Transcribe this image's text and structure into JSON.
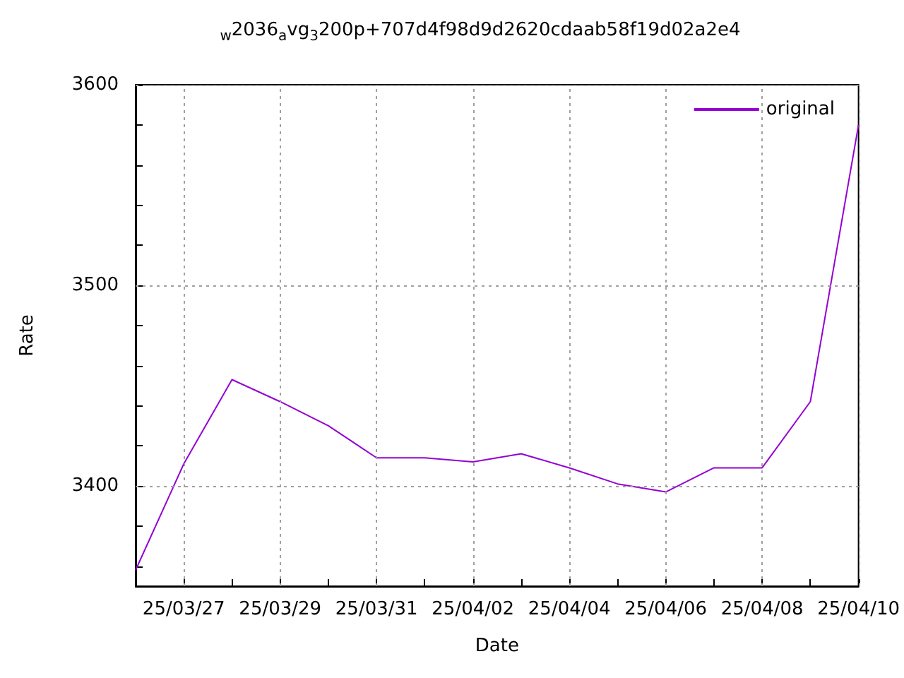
{
  "chart_data": {
    "type": "line",
    "title": "$_{w}$2036$_{a}$vg$_{3}$200p+707d4f98d9d2620cdaab58f19d02a2e4",
    "xlabel": "Date",
    "ylabel": "Rate",
    "x": [
      "--03-26",
      "--03-27",
      "--03-28",
      "--03-29",
      "--03-30",
      "--03-31",
      "--04-01",
      "--04-02",
      "--04-03",
      "--04-04",
      "--04-05",
      "--04-06",
      "--04-07",
      "--04-08",
      "--04-09",
      "--04-10"
    ],
    "series": [
      {
        "name": "original",
        "color": "#9400d3",
        "values": [
          3358,
          3411,
          3453,
          3442,
          3430,
          3414,
          3414,
          3412,
          3416,
          3409,
          3401,
          3397,
          3409,
          3409,
          3442,
          3580
        ]
      }
    ],
    "xlim": [
      "--03-26",
      "--04-10"
    ],
    "xticks": [
      {
        "value": "--03-27",
        "label": "25/03/27"
      },
      {
        "value": "--03-28",
        "label": null
      },
      {
        "value": "--03-29",
        "label": "25/03/29"
      },
      {
        "value": "--03-30",
        "label": null
      },
      {
        "value": "--03-31",
        "label": "25/03/31"
      },
      {
        "value": "--04-01",
        "label": null
      },
      {
        "value": "--04-02",
        "label": "25/04/02"
      },
      {
        "value": "--04-03",
        "label": null
      },
      {
        "value": "--04-04",
        "label": "25/04/04"
      },
      {
        "value": "--04-05",
        "label": null
      },
      {
        "value": "--04-06",
        "label": "25/04/06"
      },
      {
        "value": "--04-07",
        "label": null
      },
      {
        "value": "--04-08",
        "label": "25/04/08"
      },
      {
        "value": "--04-09",
        "label": null
      },
      {
        "value": "--04-10",
        "label": "25/04/10"
      }
    ],
    "ylim": [
      3350,
      3600
    ],
    "yticks": [
      {
        "value": 3360,
        "label": null
      },
      {
        "value": 3380,
        "label": null
      },
      3400,
      {
        "value": 3420,
        "label": null
      },
      {
        "value": 3440,
        "label": null
      },
      {
        "value": 3460,
        "label": null
      },
      {
        "value": 3480,
        "label": null
      },
      3500,
      {
        "value": 3520,
        "label": null
      },
      {
        "value": 3540,
        "label": null
      },
      {
        "value": 3560,
        "label": null
      },
      {
        "value": 3580,
        "label": null
      },
      3600
    ],
    "grid": true,
    "legend": "top right",
    "marker": "none",
    "line_style": "solid"
  }
}
